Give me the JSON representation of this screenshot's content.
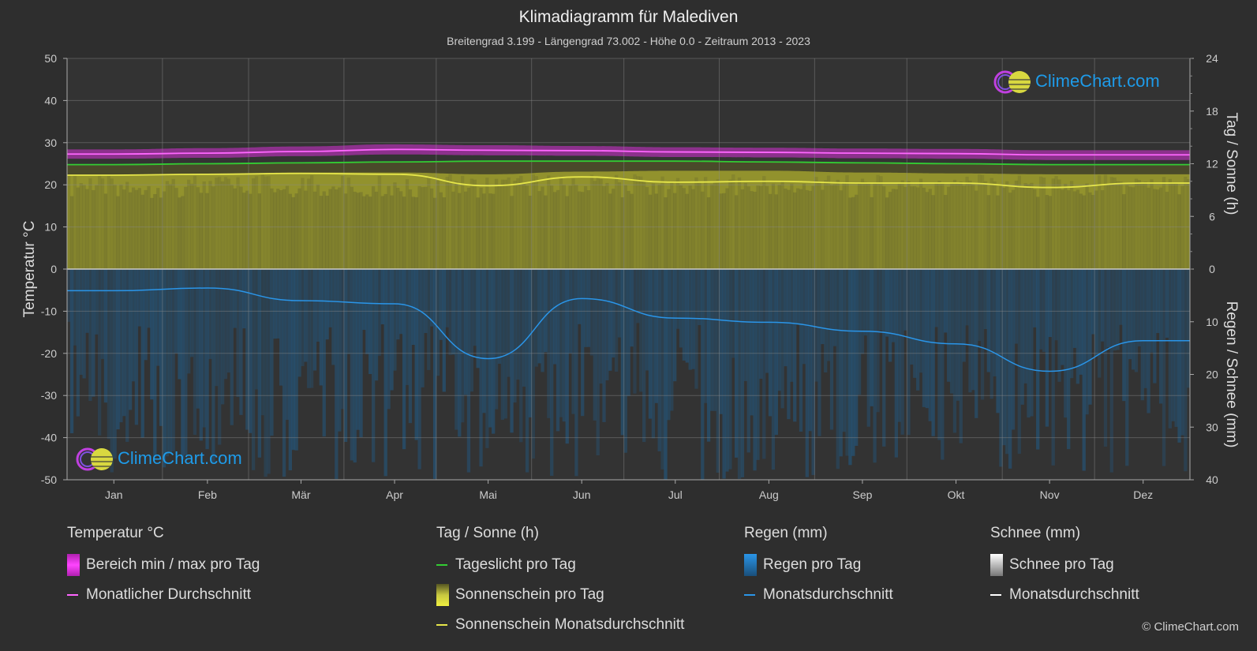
{
  "title": "Klimadiagramm für Malediven",
  "subtitle": "Breitengrad 3.199 - Längengrad 73.002 - Höhe 0.0 - Zeitraum 2013 - 2023",
  "logo_text": "ClimeChart.com",
  "copyright": "© ClimeChart.com",
  "colors": {
    "background": "#2e2e2e",
    "temp_range": "#d62fd6",
    "temp_avg": "#ff66ff",
    "daylight": "#33cc33",
    "sunshine_fill": "#9a9a2e",
    "sunshine_avg": "#e6e64a",
    "rain_fill": "#1f5f8f",
    "rain_avg": "#2a95e8",
    "snow_avg": "#ffffff"
  },
  "chart_data": {
    "type": "line",
    "categories": [
      "Jan",
      "Feb",
      "Mär",
      "Apr",
      "Mai",
      "Jun",
      "Jul",
      "Aug",
      "Sep",
      "Okt",
      "Nov",
      "Dez"
    ],
    "y_left": {
      "label": "Temperatur °C",
      "range": [
        -50,
        50
      ],
      "ticks": [
        "50",
        "40",
        "30",
        "20",
        "10",
        "0",
        "-10",
        "-20",
        "-30",
        "-40",
        "-50"
      ]
    },
    "y_right_top": {
      "label": "Tag / Sonne (h)",
      "range": [
        0,
        24
      ],
      "ticks": [
        "24",
        "18",
        "12",
        "6",
        "0"
      ]
    },
    "y_right_bottom": {
      "label": "Regen / Schnee (mm)",
      "range": [
        0,
        40
      ],
      "ticks": [
        "0",
        "10",
        "20",
        "30",
        "40"
      ]
    },
    "grid": true,
    "series": [
      {
        "name": "Monatlicher Durchschnitt",
        "axis": "temperature",
        "values": [
          27.3,
          27.5,
          27.9,
          28.4,
          28.2,
          28.1,
          27.8,
          27.7,
          27.5,
          27.4,
          27.1,
          27.1
        ]
      },
      {
        "name": "Bereich min / max pro Tag",
        "axis": "temperature",
        "min": [
          26.2,
          26.4,
          26.8,
          27.2,
          27.0,
          26.9,
          26.6,
          26.5,
          26.3,
          26.2,
          25.9,
          25.9
        ],
        "max": [
          28.4,
          28.7,
          29.1,
          29.6,
          29.4,
          29.2,
          28.9,
          28.8,
          28.6,
          28.5,
          28.2,
          28.2
        ]
      },
      {
        "name": "Tageslicht pro Tag",
        "axis": "sun_hours",
        "values": [
          11.9,
          12.0,
          12.1,
          12.2,
          12.3,
          12.3,
          12.3,
          12.2,
          12.1,
          12.0,
          11.9,
          11.9
        ]
      },
      {
        "name": "Sonnenschein pro Tag",
        "axis": "sun_hours",
        "values": [
          10.7,
          10.8,
          11.0,
          11.0,
          10.8,
          11.1,
          11.2,
          11.2,
          11.0,
          10.9,
          10.8,
          10.8
        ]
      },
      {
        "name": "Sonnenschein Monatsdurchschnitt",
        "axis": "sun_hours",
        "values": [
          10.7,
          10.8,
          10.9,
          10.8,
          9.5,
          10.5,
          9.9,
          10.0,
          9.8,
          9.8,
          9.3,
          9.8
        ]
      },
      {
        "name": "Regen Monatsdurchschnitt",
        "axis": "rain_mm",
        "values": [
          4.1,
          3.6,
          6.0,
          6.6,
          17.0,
          5.6,
          9.3,
          10.1,
          11.8,
          14.2,
          19.4,
          13.6
        ]
      }
    ]
  },
  "legend": {
    "temp": {
      "header": "Temperatur °C",
      "items": [
        "Bereich min / max pro Tag",
        "Monatlicher Durchschnitt"
      ]
    },
    "sun": {
      "header": "Tag / Sonne (h)",
      "items": [
        "Tageslicht pro Tag",
        "Sonnenschein pro Tag",
        "Sonnenschein Monatsdurchschnitt"
      ]
    },
    "rain": {
      "header": "Regen (mm)",
      "items": [
        "Regen pro Tag",
        "Monatsdurchschnitt"
      ]
    },
    "snow": {
      "header": "Schnee (mm)",
      "items": [
        "Schnee pro Tag",
        "Monatsdurchschnitt"
      ]
    }
  }
}
